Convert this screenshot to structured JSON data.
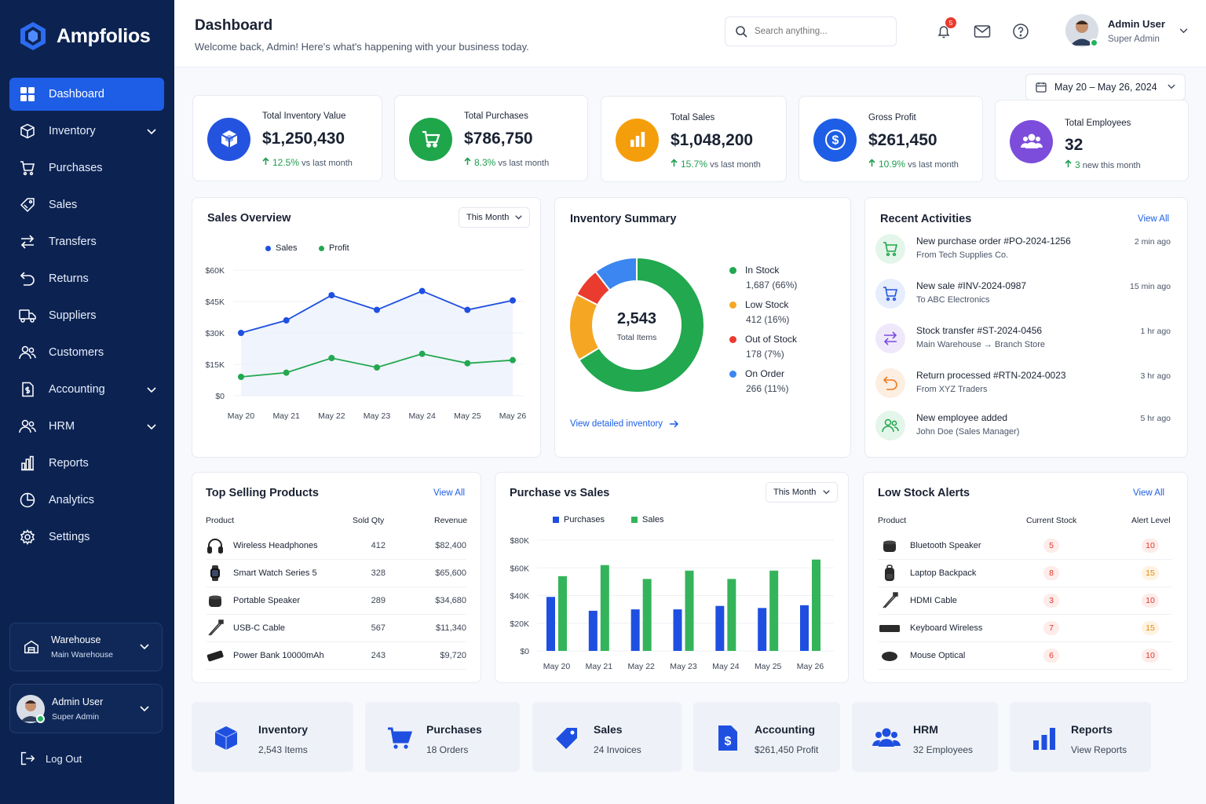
{
  "app": {
    "name": "Ampfolios"
  },
  "sidebar": {
    "items": [
      {
        "label": "Dashboard",
        "icon": "dashboard-icon",
        "active": true
      },
      {
        "label": "Inventory",
        "icon": "box-icon",
        "expandable": true
      },
      {
        "label": "Purchases",
        "icon": "cart-icon"
      },
      {
        "label": "Sales",
        "icon": "tag-icon"
      },
      {
        "label": "Transfers",
        "icon": "transfer-icon"
      },
      {
        "label": "Returns",
        "icon": "return-icon"
      },
      {
        "label": "Suppliers",
        "icon": "truck-icon"
      },
      {
        "label": "Customers",
        "icon": "users-icon"
      },
      {
        "label": "Accounting",
        "icon": "accounting-icon",
        "expandable": true
      },
      {
        "label": "HRM",
        "icon": "hrm-icon",
        "expandable": true
      },
      {
        "label": "Reports",
        "icon": "reports-icon"
      },
      {
        "label": "Analytics",
        "icon": "analytics-icon"
      },
      {
        "label": "Settings",
        "icon": "gear-icon"
      }
    ],
    "warehouse": {
      "label": "Warehouse",
      "value": "Main Warehouse"
    },
    "user": {
      "name": "Admin User",
      "role": "Super Admin"
    },
    "logout": "Log Out"
  },
  "header": {
    "title": "Dashboard",
    "subtitle": "Welcome back, Admin!  Here's what's happening with your business today.",
    "search_placeholder": "Search anything...",
    "notifications": "5",
    "user": {
      "name": "Admin User",
      "role": "Super Admin"
    }
  },
  "date_range": "May 20 – May 26, 2024",
  "stats": [
    {
      "label": "Total Inventory Value",
      "value": "$1,250,430",
      "trend": "12.5%",
      "trend_text": "vs last month",
      "color": "#2453e0"
    },
    {
      "label": "Total Purchases",
      "value": "$786,750",
      "trend": "8.3%",
      "trend_text": "vs last month",
      "color": "#1fa64b"
    },
    {
      "label": "Total Sales",
      "value": "$1,048,200",
      "trend": "15.7%",
      "trend_text": "vs last month",
      "color": "#f59e0b"
    },
    {
      "label": "Gross Profit",
      "value": "$261,450",
      "trend": "10.9%",
      "trend_text": "vs last month",
      "color": "#1e5ee6"
    },
    {
      "label": "Total Employees",
      "value": "32",
      "trend": "3",
      "trend_text": "new this month",
      "color": "#7c4ddb"
    }
  ],
  "sales_overview": {
    "title": "Sales Overview",
    "filter": "This Month"
  },
  "inventory_summary": {
    "title": "Inventory Summary",
    "total": "2,543",
    "total_label": "Total Items",
    "link": "View detailed inventory",
    "legend": [
      {
        "label": "In Stock",
        "value": "1,687 (66%)",
        "color": "#22a84f"
      },
      {
        "label": "Low Stock",
        "value": "412 (16%)",
        "color": "#f5a623"
      },
      {
        "label": "Out of Stock",
        "value": "178 (7%)",
        "color": "#ea3b2e"
      },
      {
        "label": "On Order",
        "value": "266 (11%)",
        "color": "#3b86f0"
      }
    ]
  },
  "recent_activities": {
    "title": "Recent Activities",
    "view_all": "View All",
    "items": [
      {
        "title": "New purchase order #PO-2024-1256",
        "sub": "From Tech Supplies Co.",
        "time": "2 min ago",
        "icon": "cart-icon",
        "color": "#1fa64b",
        "bg": "#e4f5ea"
      },
      {
        "title": "New sale #INV-2024-0987",
        "sub": "To ABC Electronics",
        "time": "15 min ago",
        "icon": "cart-icon",
        "color": "#2453e0",
        "bg": "#e6edfc"
      },
      {
        "title": "Stock transfer #ST-2024-0456",
        "sub": "Main Warehouse  →  Branch Store",
        "time": "1 hr ago",
        "icon": "transfer-icon",
        "color": "#7c4ddb",
        "bg": "#efe8fb"
      },
      {
        "title": "Return processed #RTN-2024-0023",
        "sub": "From XYZ Traders",
        "time": "3 hr ago",
        "icon": "return-icon",
        "color": "#f07a1a",
        "bg": "#fdeee2"
      },
      {
        "title": "New employee added",
        "sub": "John Doe (Sales Manager)",
        "time": "5 hr ago",
        "icon": "users-icon",
        "color": "#1fa64b",
        "bg": "#e4f5ea"
      }
    ]
  },
  "top_selling": {
    "title": "Top Selling Products",
    "view_all": "View All",
    "columns": [
      "Product",
      "Sold Qty",
      "Revenue"
    ],
    "rows": [
      {
        "name": "Wireless Headphones",
        "qty": "412",
        "revenue": "$82,400",
        "icon": "headphones-icon"
      },
      {
        "name": "Smart Watch Series 5",
        "qty": "328",
        "revenue": "$65,600",
        "icon": "watch-icon"
      },
      {
        "name": "Portable Speaker",
        "qty": "289",
        "revenue": "$34,680",
        "icon": "speaker-icon"
      },
      {
        "name": "USB-C Cable",
        "qty": "567",
        "revenue": "$11,340",
        "icon": "cable-icon"
      },
      {
        "name": "Power Bank 10000mAh",
        "qty": "243",
        "revenue": "$9,720",
        "icon": "powerbank-icon"
      }
    ]
  },
  "purchase_vs_sales": {
    "title": "Purchase vs Sales",
    "filter": "This Month"
  },
  "low_stock": {
    "title": "Low Stock Alerts",
    "view_all": "View All",
    "columns": [
      "Product",
      "Current Stock",
      "Alert Level"
    ],
    "rows": [
      {
        "name": "Bluetooth Speaker",
        "stock": "5",
        "alert": "10",
        "icon": "speaker-icon"
      },
      {
        "name": "Laptop Backpack",
        "stock": "8",
        "alert": "15",
        "icon": "backpack-icon"
      },
      {
        "name": "HDMI Cable",
        "stock": "3",
        "alert": "10",
        "icon": "cable-icon"
      },
      {
        "name": "Keyboard Wireless",
        "stock": "7",
        "alert": "15",
        "icon": "keyboard-icon"
      },
      {
        "name": "Mouse Optical",
        "stock": "6",
        "alert": "10",
        "icon": "mouse-icon"
      }
    ]
  },
  "quick_links": [
    {
      "title": "Inventory",
      "sub": "2,543 Items",
      "icon": "box-icon"
    },
    {
      "title": "Purchases",
      "sub": "18 Orders",
      "icon": "cart-icon"
    },
    {
      "title": "Sales",
      "sub": "24 Invoices",
      "icon": "tag-icon"
    },
    {
      "title": "Accounting",
      "sub": "$261,450 Profit",
      "icon": "accounting-icon"
    },
    {
      "title": "HRM",
      "sub": "32 Employees",
      "icon": "users-icon"
    },
    {
      "title": "Reports",
      "sub": "View Reports",
      "icon": "reports-icon"
    }
  ],
  "chart_data": [
    {
      "type": "line",
      "title": "Sales Overview",
      "categories": [
        "May 20",
        "May 21",
        "May 22",
        "May 23",
        "May 24",
        "May 25",
        "May 26"
      ],
      "series": [
        {
          "name": "Sales",
          "values": [
            30000,
            36000,
            48000,
            41000,
            50000,
            41000,
            45500
          ],
          "color": "#1e4fe0"
        },
        {
          "name": "Profit",
          "values": [
            9000,
            11000,
            18000,
            13500,
            20000,
            15500,
            17000
          ],
          "color": "#22a84f"
        }
      ],
      "y_ticks": [
        "$0",
        "$15K",
        "$30K",
        "$45K",
        "$60K"
      ],
      "ylim": [
        0,
        60000
      ]
    },
    {
      "type": "pie",
      "title": "Inventory Summary",
      "labels": [
        "In Stock",
        "Low Stock",
        "Out of Stock",
        "On Order"
      ],
      "values": [
        1687,
        412,
        178,
        266
      ]
    },
    {
      "type": "bar",
      "title": "Purchase vs Sales",
      "categories": [
        "May 20",
        "May 21",
        "May 22",
        "May 23",
        "May 24",
        "May 25",
        "May 26"
      ],
      "series": [
        {
          "name": "Purchases",
          "values": [
            39000,
            29000,
            30000,
            30000,
            32500,
            31000,
            33000
          ],
          "color": "#1e4fe0"
        },
        {
          "name": "Sales",
          "values": [
            54000,
            62000,
            52000,
            58000,
            52000,
            58000,
            66000
          ],
          "color": "#34b45a"
        }
      ],
      "y_ticks": [
        "$0",
        "$20K",
        "$40K",
        "$60K",
        "$80K"
      ],
      "ylim": [
        0,
        80000
      ]
    }
  ]
}
